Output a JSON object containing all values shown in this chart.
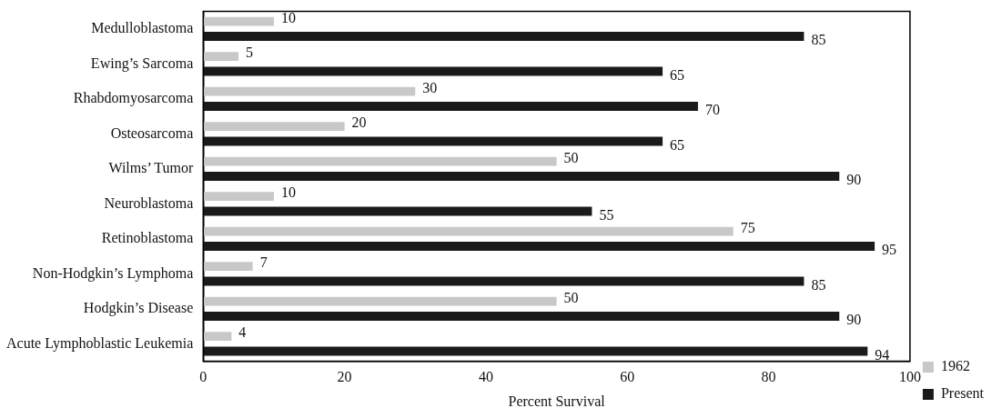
{
  "chart_data": {
    "type": "bar",
    "orientation": "horizontal",
    "xlabel": "Percent Survival",
    "categories": [
      "Medulloblastoma",
      "Ewing’s Sarcoma",
      "Rhabdomyosarcoma",
      "Osteosarcoma",
      "Wilms’ Tumor",
      "Neuroblastoma",
      "Retinoblastoma",
      "Non-Hodgkin’s Lymphoma",
      "Hodgkin’s Disease",
      "Acute Lymphoblastic Leukemia"
    ],
    "series": [
      {
        "name": "1962",
        "color": "#c8c8c8",
        "values": [
          10,
          5,
          30,
          20,
          50,
          10,
          75,
          7,
          50,
          4
        ]
      },
      {
        "name": "Present",
        "color": "#1a1a1a",
        "values": [
          85,
          65,
          70,
          65,
          90,
          55,
          95,
          85,
          90,
          94
        ]
      }
    ],
    "xlim": [
      0,
      100
    ],
    "xticks": [
      0,
      20,
      40,
      60,
      80,
      100
    ],
    "data_labels": true,
    "grid": false,
    "legend": "right"
  }
}
